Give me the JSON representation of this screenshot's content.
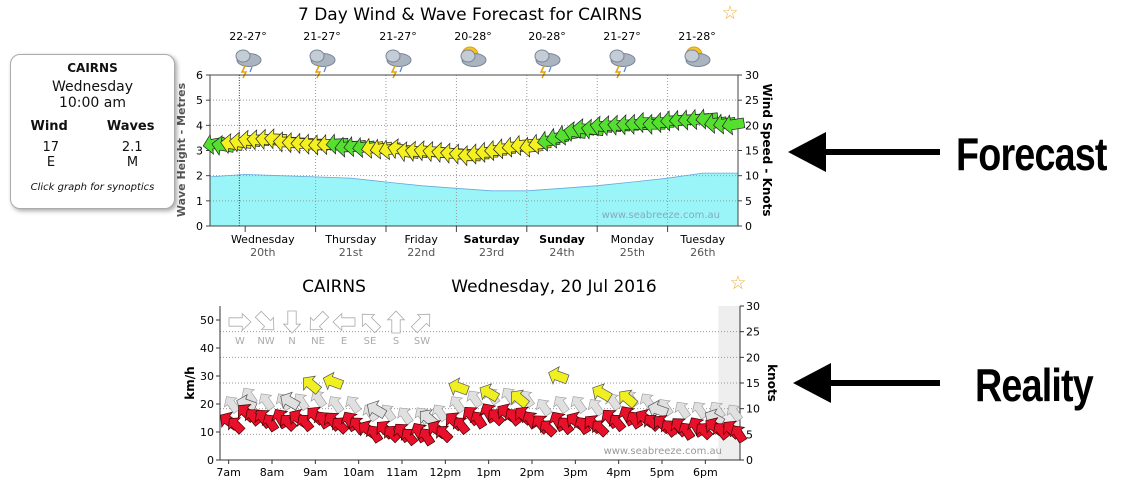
{
  "top": {
    "title": "7 Day Wind & Wave Forecast for CAIRNS",
    "temps": [
      "22-27°",
      "21-27°",
      "21-27°",
      "20-28°",
      "20-28°",
      "21-27°",
      "21-28°"
    ],
    "weather_icons": [
      "storm-cloud-icon",
      "storm-cloud-icon",
      "storm-cloud-icon",
      "sun-cloud-icon",
      "storm-cloud-icon",
      "storm-cloud-icon",
      "sun-cloud-icon"
    ],
    "watermark": "www.seabreeze.com.au"
  },
  "card": {
    "location": "CAIRNS",
    "day": "Wednesday",
    "time": "10:00 am",
    "wind_label": "Wind",
    "waves_label": "Waves",
    "wind_speed": "17",
    "wave_height": "2.1",
    "wind_dir": "E",
    "wave_size": "M",
    "note": "Click graph for synoptics"
  },
  "bottom": {
    "location": "CAIRNS",
    "date": "Wednesday, 20 Jul 2016",
    "compass": [
      "W",
      "NW",
      "N",
      "NE",
      "E",
      "SE",
      "S",
      "SW"
    ],
    "watermark": "www.seabreeze.com.au"
  },
  "labels": {
    "forecast": "Forecast",
    "reality": "Reality"
  },
  "colors": {
    "wave": "#99f5f7",
    "forecast_yellow": "#f5f020",
    "forecast_green": "#55e030",
    "obs_red": "#e8102a",
    "obs_yellow": "#f0f020",
    "obs_gray": "#e0e0e0"
  },
  "chart_data": [
    {
      "type": "area",
      "title": "7 Day Wind & Wave Forecast for CAIRNS",
      "ylabel": "Wave Height - Metres",
      "ylabel2": "Wind Speed - Knots",
      "ylim": [
        0,
        6
      ],
      "y2lim": [
        0,
        30
      ],
      "yticks": [
        0,
        1,
        2,
        3,
        4,
        5,
        6
      ],
      "y2ticks": [
        0,
        5,
        10,
        15,
        20,
        25,
        30
      ],
      "days": [
        {
          "name": "Wednesday",
          "date": "20th",
          "bold": false
        },
        {
          "name": "Thursday",
          "date": "21st",
          "bold": false
        },
        {
          "name": "Friday",
          "date": "22nd",
          "bold": false
        },
        {
          "name": "Saturday",
          "date": "23rd",
          "bold": true
        },
        {
          "name": "Sunday",
          "date": "24th",
          "bold": true
        },
        {
          "name": "Monday",
          "date": "25th",
          "bold": false
        },
        {
          "name": "Tuesday",
          "date": "26th",
          "bold": false
        }
      ],
      "x_hours": [
        0,
        12,
        24,
        36,
        48,
        60,
        72,
        84,
        96,
        108,
        120,
        132,
        144,
        156,
        168,
        180
      ],
      "wave_height_m": [
        1.95,
        2.05,
        2.0,
        1.95,
        1.9,
        1.75,
        1.6,
        1.5,
        1.4,
        1.4,
        1.5,
        1.6,
        1.75,
        1.9,
        2.1,
        2.1
      ],
      "wind_speed_kn": [
        16,
        17,
        17,
        16,
        16,
        15,
        15,
        14,
        15,
        16,
        18,
        20,
        20,
        21,
        21,
        20
      ],
      "wind_sentence": [
        "green",
        "yellow",
        "yellow",
        "yellow",
        "green",
        "yellow",
        "yellow",
        "yellow",
        "yellow",
        "yellow",
        "green",
        "green",
        "green",
        "green",
        "green",
        "green"
      ],
      "current_time_marker_hour": 10
    },
    {
      "type": "scatter",
      "title": "CAIRNS",
      "subtitle": "Wednesday, 20 Jul 2016",
      "ylabel": "km/h",
      "ylabel2": "knots",
      "ylim": [
        0,
        55
      ],
      "y2lim": [
        0,
        30
      ],
      "yticks": [
        0,
        10,
        20,
        30,
        40,
        50
      ],
      "y2ticks": [
        0,
        5,
        10,
        15,
        20,
        25,
        30
      ],
      "xticks": [
        "7am",
        "8am",
        "9am",
        "10am",
        "11am",
        "12pm",
        "1pm",
        "2pm",
        "3pm",
        "4pm",
        "5pm",
        "6pm"
      ],
      "x_range_h": [
        6.8,
        18.8
      ],
      "avg_kmh": [
        [
          7.0,
          14
        ],
        [
          7.4,
          17
        ],
        [
          7.8,
          15
        ],
        [
          8.2,
          15
        ],
        [
          8.6,
          15
        ],
        [
          9.0,
          16
        ],
        [
          9.4,
          14
        ],
        [
          9.8,
          14
        ],
        [
          10.2,
          11
        ],
        [
          10.6,
          11
        ],
        [
          11.0,
          10
        ],
        [
          11.4,
          10
        ],
        [
          11.8,
          11
        ],
        [
          12.2,
          14
        ],
        [
          12.6,
          16
        ],
        [
          13.0,
          17
        ],
        [
          13.4,
          17
        ],
        [
          13.8,
          16
        ],
        [
          14.2,
          13
        ],
        [
          14.6,
          14
        ],
        [
          15.0,
          14
        ],
        [
          15.4,
          13
        ],
        [
          15.8,
          15
        ],
        [
          16.2,
          16
        ],
        [
          16.6,
          15
        ],
        [
          17.0,
          13
        ],
        [
          17.4,
          12
        ],
        [
          17.8,
          12
        ],
        [
          18.2,
          12
        ],
        [
          18.6,
          11
        ]
      ],
      "gust_kmh": [
        [
          7.4,
          20
        ],
        [
          8.4,
          21
        ],
        [
          8.9,
          27
        ],
        [
          9.4,
          28
        ],
        [
          10.4,
          18
        ],
        [
          11.6,
          15
        ],
        [
          12.3,
          26
        ],
        [
          13.0,
          24
        ],
        [
          13.7,
          22
        ],
        [
          14.6,
          30
        ],
        [
          15.6,
          24
        ],
        [
          16.2,
          22
        ],
        [
          16.9,
          18
        ],
        [
          18.2,
          15
        ]
      ],
      "gust_over_15kn": [
        false,
        false,
        true,
        true,
        false,
        false,
        true,
        true,
        true,
        true,
        true,
        true,
        false,
        false
      ]
    }
  ]
}
